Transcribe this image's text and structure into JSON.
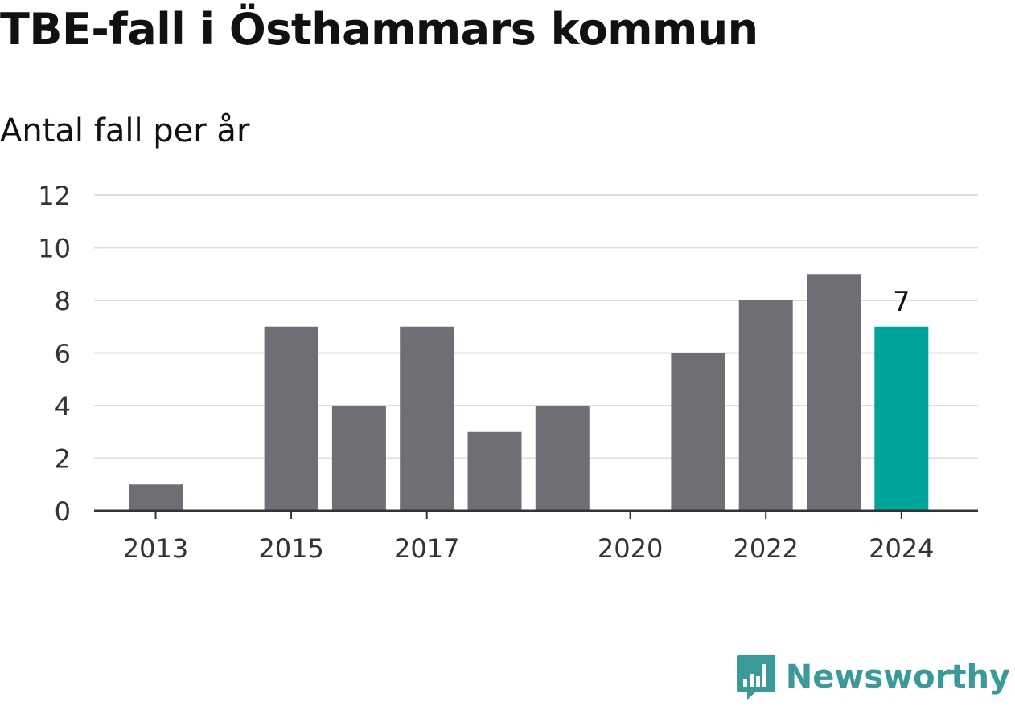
{
  "title": "TBE-fall i Östhammars kommun",
  "subtitle": "Antal fall per år",
  "brand": {
    "name": "Newsworthy",
    "logo_icon": "speech-bubble-bar-chart-icon",
    "color": "#3a9a9a"
  },
  "chart_data": {
    "type": "bar",
    "title": "TBE-fall i Östhammars kommun",
    "subtitle": "Antal fall per år",
    "categories": [
      "2013",
      "2014",
      "2015",
      "2016",
      "2017",
      "2018",
      "2019",
      "2020",
      "2021",
      "2022",
      "2023",
      "2024"
    ],
    "values": [
      1,
      0,
      7,
      4,
      7,
      3,
      4,
      0,
      6,
      8,
      9,
      7
    ],
    "x_tick_labels": [
      "2013",
      "",
      "2015",
      "",
      "2017",
      "",
      "",
      "2020",
      "",
      "2022",
      "",
      "2024"
    ],
    "y_ticks": [
      "0",
      "2",
      "4",
      "6",
      "8",
      "10",
      "12"
    ],
    "ylim": [
      0,
      12
    ],
    "grid": true,
    "colors": {
      "bar": "#6f6e75",
      "highlight": "#00a49a",
      "grid": "#dedede",
      "axis": "#333333"
    },
    "highlight_index": 11,
    "annotations": [
      {
        "category": "2024",
        "text": "7"
      }
    ]
  }
}
